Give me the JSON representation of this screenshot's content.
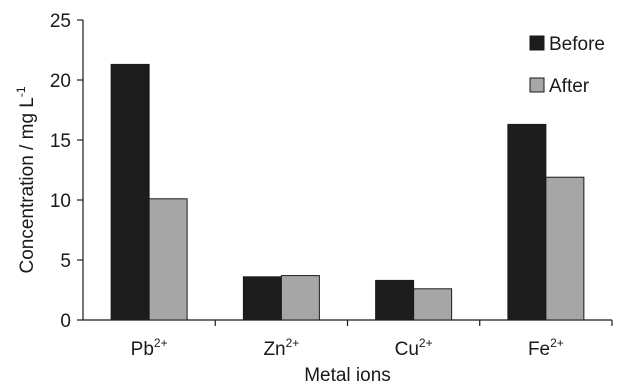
{
  "chart_data": {
    "type": "bar",
    "categories": [
      {
        "base": "Pb",
        "sup": "2+"
      },
      {
        "base": "Zn",
        "sup": "2+"
      },
      {
        "base": "Cu",
        "sup": "2+"
      },
      {
        "base": "Fe",
        "sup": "2+"
      }
    ],
    "series": [
      {
        "name": "Before",
        "color": "#1c1c1c",
        "values": [
          21.3,
          3.6,
          3.3,
          16.3
        ]
      },
      {
        "name": "After",
        "color": "#a6a6a6",
        "values": [
          10.1,
          3.7,
          2.6,
          11.9
        ]
      }
    ],
    "xlabel": "Metal ions",
    "ylabel": {
      "base": "Concentration / mg L",
      "sup": "-1"
    },
    "ylim": [
      0,
      25
    ],
    "yticks": [
      0,
      5,
      10,
      15,
      20,
      25
    ],
    "grid": false,
    "legend_position": "top-right"
  }
}
